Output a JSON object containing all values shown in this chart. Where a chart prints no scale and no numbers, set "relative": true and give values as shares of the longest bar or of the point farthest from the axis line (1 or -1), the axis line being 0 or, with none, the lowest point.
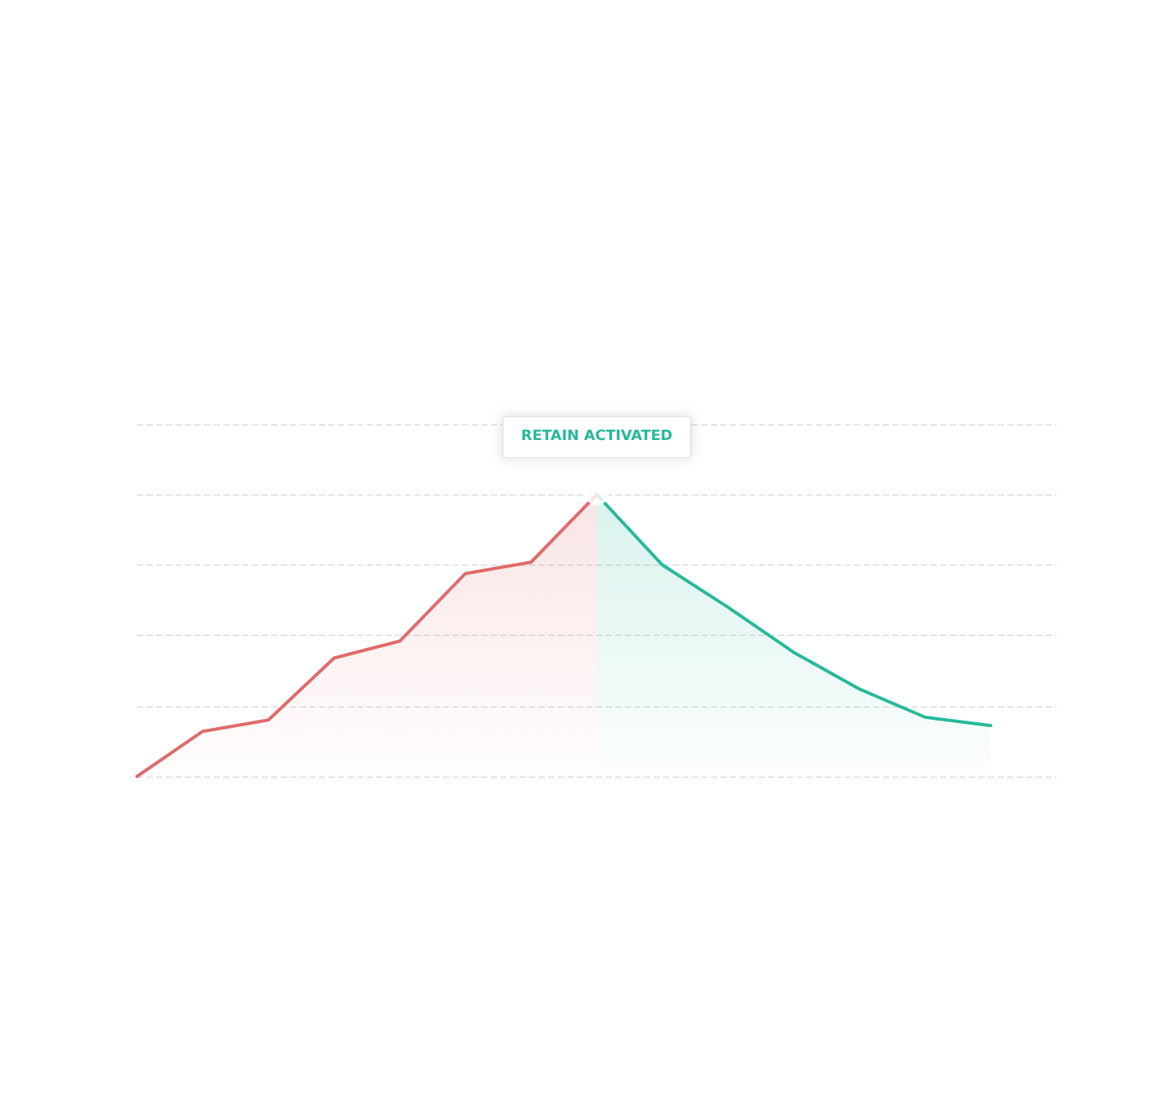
{
  "chart_data": {
    "type": "area",
    "relative": true,
    "categories": [
      null,
      null,
      null,
      null,
      null,
      null,
      null,
      null,
      null,
      null,
      null,
      null,
      null,
      null,
      null
    ],
    "series": [
      {
        "color": "#e06a6a",
        "values": [
          0,
          0.16,
          0.2,
          0.42,
          0.48,
          0.72,
          0.76,
          1,
          null,
          null,
          null,
          null,
          null,
          null,
          null
        ]
      },
      {
        "color": "#26b99a",
        "values": [
          null,
          null,
          null,
          null,
          null,
          null,
          null,
          1,
          0.75,
          0.6,
          0.44,
          0.31,
          0.21,
          0.18,
          null
        ]
      }
    ],
    "annotations": [
      "RETAIN ACTIVATED"
    ],
    "grid": "y",
    "marker": "none",
    "line_style": "solid"
  }
}
